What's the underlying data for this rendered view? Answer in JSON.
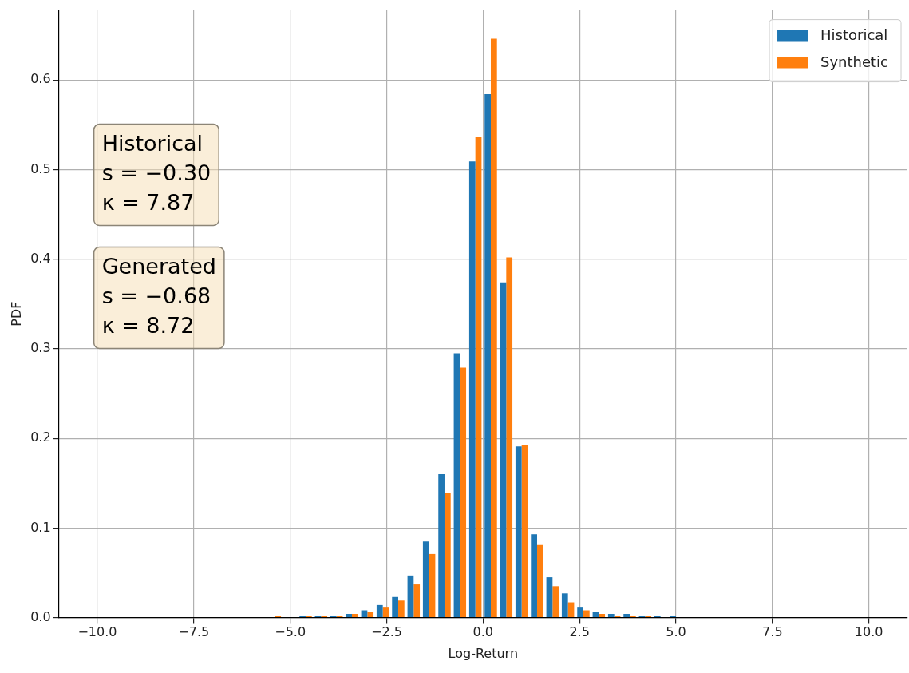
{
  "chart_data": {
    "type": "histogram",
    "xlabel": "Log-Return",
    "ylabel": "PDF",
    "bins": [
      -10,
      -9.6,
      -9.2,
      -8.8,
      -8.4,
      -8,
      -7.6,
      -7.2,
      -6.8,
      -6.4,
      -6,
      -5.6,
      -5.2,
      -4.8,
      -4.4,
      -4,
      -3.6,
      -3.2,
      -2.8,
      -2.4,
      -2,
      -1.6,
      -1.2,
      -0.8,
      -0.4,
      0,
      0.4,
      0.8,
      1.2,
      1.6,
      2,
      2.4,
      2.8,
      3.2,
      3.6,
      4,
      4.4,
      4.8,
      5.2,
      5.6,
      6,
      6.4,
      6.8,
      7.2,
      7.6,
      8,
      8.4,
      8.8,
      9.2,
      9.6,
      10
    ],
    "series": [
      {
        "name": "Historical",
        "color": "#1f77b4",
        "values": [
          0,
          0,
          0,
          0,
          0,
          0,
          0,
          0,
          0,
          0,
          0,
          0,
          0,
          0.002,
          0.002,
          0.002,
          0.004,
          0.008,
          0.014,
          0.023,
          0.047,
          0.085,
          0.16,
          0.295,
          0.509,
          0.584,
          0.374,
          0.191,
          0.093,
          0.045,
          0.027,
          0.012,
          0.006,
          0.004,
          0.004,
          0.002,
          0.002,
          0.002,
          0,
          0,
          0,
          0,
          0,
          0,
          0,
          0,
          0,
          0,
          0,
          0
        ]
      },
      {
        "name": "Synthetic",
        "color": "#ff7f0e",
        "values": [
          0,
          0,
          0,
          0,
          0,
          0,
          0,
          0,
          0,
          0,
          0,
          0.002,
          0,
          0.002,
          0.002,
          0.002,
          0.004,
          0.006,
          0.012,
          0.019,
          0.037,
          0.071,
          0.139,
          0.279,
          0.536,
          0.646,
          0.402,
          0.193,
          0.081,
          0.035,
          0.017,
          0.008,
          0.004,
          0.002,
          0.002,
          0.002,
          0,
          0,
          0,
          0,
          0,
          0,
          0,
          0,
          0,
          0,
          0,
          0,
          0,
          0
        ]
      }
    ],
    "xlim": [
      -11,
      11
    ],
    "xticks": [
      {
        "value": -10,
        "label": "−10.0"
      },
      {
        "value": -7.5,
        "label": "−7.5"
      },
      {
        "value": -5,
        "label": "−5.0"
      },
      {
        "value": -2.5,
        "label": "−2.5"
      },
      {
        "value": 0,
        "label": "0.0"
      },
      {
        "value": 2.5,
        "label": "2.5"
      },
      {
        "value": 5,
        "label": "5.0"
      },
      {
        "value": 7.5,
        "label": "7.5"
      },
      {
        "value": 10,
        "label": "10.0"
      }
    ],
    "ylim": [
      0,
      0.678
    ],
    "yticks": [
      {
        "value": 0,
        "label": "0.0"
      },
      0.1,
      0.2,
      0.3,
      0.4,
      0.5,
      0.6
    ],
    "grid": true,
    "legend": "top right",
    "annotations": [
      "Historical\ns = −0.30\nκ = 7.87",
      "Generated\ns = −0.68\nκ = 8.72"
    ]
  }
}
